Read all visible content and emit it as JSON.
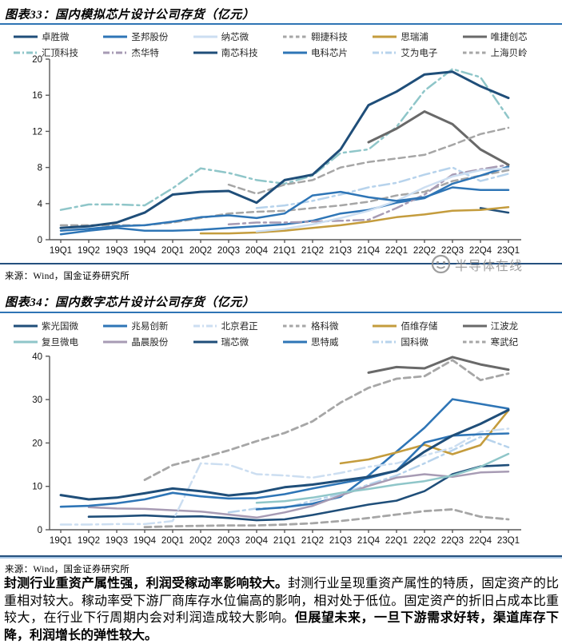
{
  "watermark": {
    "text": "半导体在线",
    "color": "#8E8E8E"
  },
  "figure33": {
    "title": "图表33：国内模拟芯片设计公司存货（亿元）",
    "source": "来源：Wind，国金证券研究所"
  },
  "figure34": {
    "title": "图表34：国内数字芯片设计公司存货（亿元）",
    "source": "来源：Wind，国金证券研究所"
  },
  "paragraph": {
    "bold_lead": "封测行业重资产属性强，利润受稼动率影响较大。",
    "body": "封测行业呈现重资产属性的特质，固定资产的比重相对较大。稼动率受下游厂商库存水位偏高的影响，相对处于低位。固定资产的折旧占成本比重较大，在行业下行周期内会对利润造成较大影响。",
    "bold_tail": "但展望未来，一旦下游需求好转，渠道库存下降，利润增长的弹性较大。"
  },
  "accent_rule_color": "#2E74B5",
  "chart_data": [
    {
      "type": "line",
      "title": "图表33：国内模拟芯片设计公司存货（亿元）",
      "unit": "亿元",
      "ylim": [
        0,
        20
      ],
      "yticks": [
        0,
        4,
        8,
        12,
        16,
        20
      ],
      "grid": false,
      "legend_position": "top",
      "legend_rows": 2,
      "categories": [
        "19Q1",
        "19Q2",
        "19Q3",
        "19Q4",
        "20Q1",
        "20Q2",
        "20Q3",
        "20Q4",
        "21Q1",
        "21Q2",
        "21Q3",
        "21Q4",
        "22Q1",
        "22Q2",
        "22Q3",
        "22Q4",
        "23Q1"
      ],
      "series": [
        {
          "name": "卓胜微",
          "color": "#1F4E79",
          "style": "solid",
          "width": 3,
          "values": [
            1.3,
            1.5,
            1.9,
            3.0,
            5.0,
            5.3,
            5.4,
            4.1,
            6.6,
            7.2,
            10.0,
            14.9,
            16.4,
            18.3,
            18.6,
            17.0,
            15.7
          ]
        },
        {
          "name": "圣邦股份",
          "color": "#2E75B6",
          "style": "solid",
          "width": 2.5,
          "values": [
            1.0,
            1.2,
            1.5,
            1.6,
            2.0,
            2.5,
            2.7,
            2.4,
            2.9,
            4.9,
            5.3,
            4.7,
            4.3,
            4.7,
            5.8,
            5.5,
            5.5
          ]
        },
        {
          "name": "纳芯微",
          "color": "#CCDEF1",
          "style": "solid",
          "width": 2.5,
          "values": [
            null,
            null,
            null,
            null,
            null,
            null,
            null,
            0.9,
            1.2,
            1.7,
            2.4,
            3.2,
            4.3,
            5.8,
            7.0,
            7.7,
            7.9
          ]
        },
        {
          "name": "翱捷科技",
          "color": "#A6A6A6",
          "style": "dashed",
          "width": 2.5,
          "values": [
            null,
            null,
            null,
            null,
            null,
            null,
            6.1,
            5.1,
            6.1,
            6.6,
            8.0,
            8.6,
            9.0,
            9.4,
            10.5,
            11.7,
            12.4
          ]
        },
        {
          "name": "思瑞浦",
          "color": "#C49C3D",
          "style": "solid",
          "width": 2.5,
          "values": [
            null,
            null,
            null,
            null,
            null,
            0.7,
            0.7,
            0.8,
            1.0,
            1.3,
            1.6,
            2.0,
            2.5,
            2.8,
            3.2,
            3.3,
            3.6
          ]
        },
        {
          "name": "唯捷创芯",
          "color": "#696969",
          "style": "solid",
          "width": 3,
          "values": [
            null,
            null,
            null,
            null,
            null,
            null,
            null,
            null,
            null,
            null,
            null,
            10.8,
            12.3,
            14.2,
            12.8,
            10.0,
            8.3
          ]
        },
        {
          "name": "汇顶科技",
          "color": "#8FC6C9",
          "style": "dashdot",
          "width": 2.5,
          "values": [
            3.3,
            3.9,
            3.9,
            3.8,
            5.7,
            7.9,
            7.4,
            6.6,
            6.2,
            7.1,
            9.6,
            10.0,
            12.5,
            16.5,
            18.9,
            18.0,
            13.5
          ]
        },
        {
          "name": "杰华特",
          "color": "#A79BB4",
          "style": "dashdot",
          "width": 2.5,
          "values": [
            null,
            null,
            null,
            null,
            null,
            null,
            1.7,
            1.9,
            1.9,
            2.0,
            2.1,
            2.2,
            3.5,
            5.0,
            7.2,
            7.8,
            8.3
          ]
        },
        {
          "name": "南芯科技",
          "color": "#1F4E79",
          "style": "solid",
          "width": 2.5,
          "values": [
            null,
            null,
            null,
            null,
            null,
            null,
            null,
            null,
            null,
            null,
            null,
            null,
            null,
            null,
            null,
            3.5,
            3.0
          ]
        },
        {
          "name": "电科芯片",
          "color": "#2E75B6",
          "style": "solid",
          "width": 2.5,
          "values": [
            0.6,
            1.0,
            1.3,
            1.0,
            1.0,
            1.1,
            1.3,
            1.5,
            1.7,
            2.1,
            2.9,
            3.3,
            4.1,
            4.6,
            6.2,
            7.1,
            8.1
          ]
        },
        {
          "name": "艾为电子",
          "color": "#B7D3EC",
          "style": "dashdot",
          "width": 2.5,
          "values": [
            null,
            null,
            null,
            null,
            null,
            null,
            null,
            3.5,
            3.8,
            4.3,
            5.0,
            5.8,
            6.3,
            7.2,
            8.0,
            6.5,
            7.3
          ]
        },
        {
          "name": "上海贝岭",
          "color": "#A6A6A6",
          "style": "dashed",
          "width": 2.5,
          "values": [
            1.6,
            1.6,
            1.6,
            1.6,
            1.9,
            2.4,
            2.9,
            3.1,
            3.2,
            3.5,
            3.8,
            4.2,
            4.9,
            5.3,
            6.5,
            7.1,
            7.7
          ]
        }
      ]
    },
    {
      "type": "line",
      "title": "图表34：国内数字芯片设计公司存货（亿元）",
      "unit": "亿元",
      "ylim": [
        0,
        40
      ],
      "yticks": [
        0,
        10,
        20,
        30,
        40
      ],
      "grid": false,
      "legend_position": "top",
      "legend_rows": 2,
      "categories": [
        "19Q1",
        "19Q2",
        "19Q3",
        "19Q4",
        "20Q1",
        "20Q2",
        "20Q3",
        "20Q4",
        "21Q1",
        "21Q2",
        "21Q3",
        "21Q4",
        "22Q1",
        "22Q2",
        "22Q3",
        "22Q4",
        "23Q1"
      ],
      "series": [
        {
          "name": "紫光国微",
          "color": "#1F4E79",
          "style": "solid",
          "width": 3,
          "values": [
            8.0,
            7.0,
            7.4,
            8.4,
            9.5,
            8.9,
            7.9,
            8.5,
            9.8,
            10.4,
            11.3,
            12.2,
            13.6,
            18.0,
            21.7,
            24.4,
            27.6
          ]
        },
        {
          "name": "兆易创新",
          "color": "#2E75B6",
          "style": "solid",
          "width": 2.6,
          "values": [
            5.3,
            5.5,
            6.1,
            7.0,
            8.5,
            7.7,
            7.2,
            7.3,
            8.2,
            9.5,
            10.7,
            11.9,
            13.6,
            20.1,
            21.7,
            22.0,
            22.2
          ]
        },
        {
          "name": "北京君正",
          "color": "#CCDEF1",
          "style": "dashdot",
          "width": 2.5,
          "values": [
            1.2,
            1.2,
            1.3,
            1.3,
            2.0,
            15.3,
            15.0,
            12.8,
            12.5,
            12.0,
            13.1,
            14.5,
            15.3,
            17.1,
            18.9,
            22.6,
            23.3
          ]
        },
        {
          "name": "格科微",
          "color": "#A6A6A6",
          "style": "dashed",
          "width": 2.8,
          "values": [
            null,
            null,
            null,
            11.5,
            14.9,
            16.5,
            18.3,
            20.4,
            22.3,
            25.0,
            29.3,
            32.7,
            34.8,
            35.4,
            39.1,
            34.5,
            36.0
          ]
        },
        {
          "name": "佰维存储",
          "color": "#C49C3D",
          "style": "solid",
          "width": 2.6,
          "values": [
            null,
            null,
            null,
            null,
            null,
            null,
            null,
            null,
            null,
            null,
            15.3,
            16.2,
            17.8,
            19.6,
            17.4,
            19.5,
            27.5
          ]
        },
        {
          "name": "江波龙",
          "color": "#696969",
          "style": "solid",
          "width": 3,
          "values": [
            null,
            null,
            null,
            null,
            null,
            null,
            null,
            null,
            null,
            null,
            null,
            36.2,
            37.5,
            37.2,
            39.8,
            38.1,
            36.9
          ]
        },
        {
          "name": "复旦微电",
          "color": "#8FC6C9",
          "style": "solid",
          "width": 2.5,
          "values": [
            null,
            null,
            null,
            null,
            null,
            null,
            null,
            6.2,
            6.6,
            7.4,
            8.5,
            9.4,
            10.4,
            11.2,
            12.5,
            14.5,
            17.5
          ]
        },
        {
          "name": "晶晨股份",
          "color": "#A79BB4",
          "style": "solid",
          "width": 2.5,
          "values": [
            null,
            5.2,
            4.9,
            4.8,
            4.5,
            4.2,
            3.5,
            2.8,
            4.0,
            5.5,
            7.9,
            10.1,
            12.0,
            12.8,
            12.2,
            13.2,
            13.4
          ]
        },
        {
          "name": "瑞芯微",
          "color": "#1F4E79",
          "style": "solid",
          "width": 2.6,
          "values": [
            null,
            3.0,
            3.1,
            3.3,
            3.0,
            3.1,
            2.7,
            2.2,
            2.4,
            3.4,
            4.6,
            5.8,
            6.7,
            8.9,
            12.8,
            14.6,
            14.9
          ]
        },
        {
          "name": "思特威",
          "color": "#2E75B6",
          "style": "solid",
          "width": 2.6,
          "values": [
            null,
            null,
            null,
            null,
            null,
            null,
            null,
            4.7,
            5.2,
            6.0,
            7.6,
            12.5,
            18.0,
            23.5,
            30.1,
            29.0,
            27.9
          ]
        },
        {
          "name": "国科微",
          "color": "#B7D3EC",
          "style": "dashdot",
          "width": 2.5,
          "values": [
            null,
            null,
            null,
            null,
            null,
            null,
            4.0,
            4.9,
            5.0,
            6.7,
            8.2,
            10.4,
            12.5,
            15.3,
            18.3,
            21.4,
            19.0
          ]
        },
        {
          "name": "寒武纪",
          "color": "#A6A6A6",
          "style": "dashed",
          "width": 2.8,
          "values": [
            null,
            null,
            null,
            0.6,
            0.8,
            0.9,
            1.0,
            1.0,
            1.2,
            1.5,
            2.0,
            2.7,
            3.5,
            4.3,
            4.7,
            3.0,
            2.4
          ]
        }
      ]
    }
  ]
}
